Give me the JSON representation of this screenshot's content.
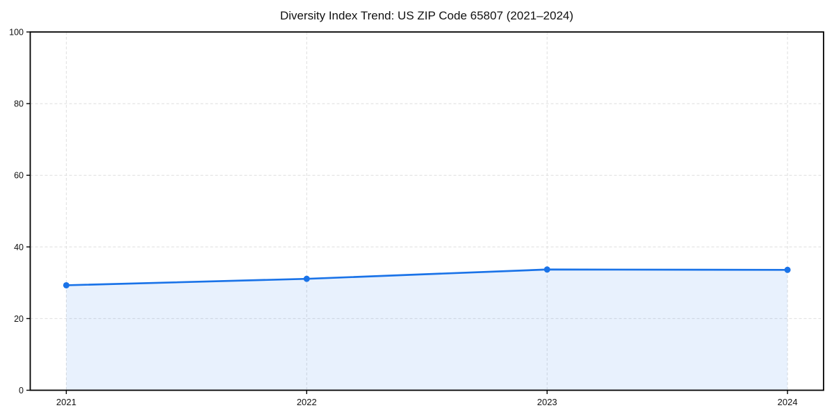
{
  "page": {
    "background": "#ffffff"
  },
  "chart_data": {
    "type": "area",
    "title": "Diversity Index Trend: US ZIP Code 65807 (2021–2024)",
    "x": [
      2021,
      2022,
      2023,
      2024
    ],
    "x_tick_labels": [
      "2021",
      "2022",
      "2023",
      "2024"
    ],
    "series": [
      {
        "name": "Diversity Index",
        "values": [
          29.3,
          31.1,
          33.7,
          33.6
        ]
      }
    ],
    "xlabel": "",
    "ylabel": "",
    "ylim": [
      0,
      100
    ],
    "yticks": [
      0,
      20,
      40,
      60,
      80,
      100
    ],
    "grid": {
      "visible": true,
      "style": "dashed",
      "axes": "both"
    },
    "legend": "none",
    "marker": "circle",
    "x_margin_frac": 0.05,
    "colors": {
      "line": "#1a73e8",
      "marker": "#1a73e8",
      "fill": "#1a73e8",
      "fill_opacity": 0.1,
      "grid": "#dedede",
      "axis": "#000000",
      "text": "#111111",
      "background": "#ffffff"
    }
  }
}
